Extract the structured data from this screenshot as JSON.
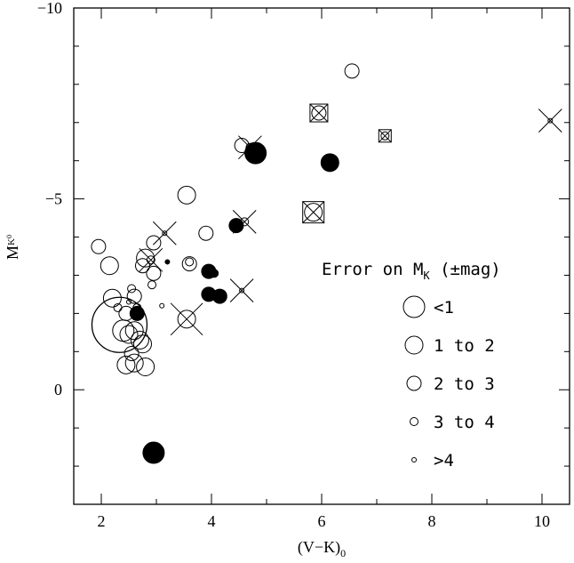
{
  "chart_data": {
    "type": "scatter",
    "xlabel": "(V−K)",
    "xlabel_sub": "0",
    "ylabel": "M",
    "ylabel_sub": "K",
    "ylabel_sub2": "0",
    "xlim": [
      1.5,
      10.5
    ],
    "ylim": [
      3,
      -10
    ],
    "y_inverted": true,
    "x_ticks": [
      2,
      4,
      6,
      8,
      10
    ],
    "x_tick_labels": [
      "2",
      "4",
      "6",
      "8",
      "10"
    ],
    "y_ticks": [
      0,
      -5,
      -10
    ],
    "y_tick_labels": [
      "0",
      "−5",
      "−10"
    ],
    "legend": {
      "title_prefix": "Error on M",
      "title_sub": "K",
      "title_suffix": " (±mag)",
      "entries": [
        {
          "label": "<1",
          "size_class": 1
        },
        {
          "label": "1 to 2",
          "size_class": 2
        },
        {
          "label": "2 to 3",
          "size_class": 3
        },
        {
          "label": "3 to 4",
          "size_class": 4
        },
        {
          "label": ">4",
          "size_class": 5
        }
      ]
    },
    "ellipse": {
      "cx": 2.33,
      "cy": -1.7,
      "rx": 0.5,
      "ry": 0.55
    },
    "points": [
      {
        "x": 1.95,
        "y": -3.75,
        "s": 3
      },
      {
        "x": 2.15,
        "y": -3.25,
        "s": 2
      },
      {
        "x": 2.2,
        "y": -2.4,
        "s": 2
      },
      {
        "x": 2.3,
        "y": -2.15,
        "s": 4
      },
      {
        "x": 2.4,
        "y": -1.55,
        "s": 1
      },
      {
        "x": 2.45,
        "y": -2.0,
        "s": 3
      },
      {
        "x": 2.5,
        "y": -2.3,
        "s": 5
      },
      {
        "x": 2.6,
        "y": -2.45,
        "s": 3
      },
      {
        "x": 2.55,
        "y": -2.65,
        "s": 4
      },
      {
        "x": 2.65,
        "y": -2.15,
        "s": 4
      },
      {
        "x": 2.5,
        "y": -1.45,
        "s": 2
      },
      {
        "x": 2.6,
        "y": -1.55,
        "s": 2
      },
      {
        "x": 2.7,
        "y": -1.3,
        "s": 2
      },
      {
        "x": 2.55,
        "y": -0.95,
        "s": 3
      },
      {
        "x": 2.45,
        "y": -0.65,
        "s": 2
      },
      {
        "x": 2.6,
        "y": -0.7,
        "s": 2
      },
      {
        "x": 2.75,
        "y": -1.2,
        "s": 2
      },
      {
        "x": 2.8,
        "y": -0.6,
        "s": 2
      },
      {
        "x": 2.75,
        "y": -3.25,
        "s": 3
      },
      {
        "x": 2.8,
        "y": -3.45,
        "s": 2
      },
      {
        "x": 2.92,
        "y": -2.75,
        "s": 4
      },
      {
        "x": 2.95,
        "y": -3.05,
        "s": 3
      },
      {
        "x": 2.95,
        "y": -3.85,
        "s": 3
      },
      {
        "x": 3.1,
        "y": -2.2,
        "s": 5
      },
      {
        "x": 3.55,
        "y": -5.1,
        "s": 2
      },
      {
        "x": 3.6,
        "y": -3.35,
        "s": 4
      },
      {
        "x": 3.6,
        "y": -3.3,
        "s": 3
      },
      {
        "x": 3.9,
        "y": -4.1,
        "s": 3
      },
      {
        "x": 6.55,
        "y": -8.35,
        "s": 3
      },
      {
        "x": 4.55,
        "y": -6.4,
        "s": 3
      },
      {
        "x": 2.65,
        "y": -2.0,
        "s": 3,
        "f": true
      },
      {
        "x": 2.95,
        "y": 1.65,
        "s": 1,
        "f": true
      },
      {
        "x": 3.2,
        "y": -3.35,
        "s": 5,
        "f": true
      },
      {
        "x": 3.95,
        "y": -3.1,
        "s": 3,
        "f": true
      },
      {
        "x": 4.05,
        "y": -3.05,
        "s": 4,
        "f": true
      },
      {
        "x": 3.95,
        "y": -2.5,
        "s": 3,
        "f": true
      },
      {
        "x": 4.15,
        "y": -2.45,
        "s": 3,
        "f": true
      },
      {
        "x": 4.45,
        "y": -4.3,
        "s": 3,
        "f": true
      },
      {
        "x": 4.8,
        "y": -6.2,
        "s": 1,
        "f": true
      },
      {
        "x": 6.15,
        "y": -5.95,
        "s": 2,
        "f": true
      },
      {
        "x": 3.15,
        "y": -4.1,
        "s": 5,
        "c": true
      },
      {
        "x": 2.9,
        "y": -3.4,
        "s": 4,
        "c": true
      },
      {
        "x": 3.55,
        "y": -1.85,
        "s": 2,
        "c": true
      },
      {
        "x": 4.6,
        "y": -4.4,
        "s": 4,
        "c": true
      },
      {
        "x": 4.55,
        "y": -2.6,
        "s": 5,
        "c": true
      },
      {
        "x": 4.7,
        "y": -6.35,
        "s": 4,
        "c": true
      },
      {
        "x": 10.15,
        "y": -7.05,
        "s": 5,
        "c": true
      },
      {
        "x": 5.95,
        "y": -7.25,
        "s": 3,
        "q": true
      },
      {
        "x": 7.15,
        "y": -6.65,
        "s": 4,
        "q": true
      },
      {
        "x": 5.85,
        "y": -4.65,
        "s": 2,
        "q": true
      }
    ]
  }
}
